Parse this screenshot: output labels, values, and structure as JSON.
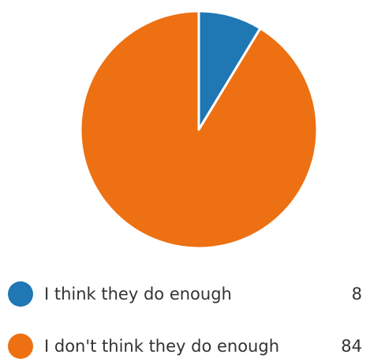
{
  "chart_data": {
    "type": "pie",
    "categories": [
      "I think they do enough",
      "I don't think they do enough"
    ],
    "values": [
      8,
      84
    ],
    "colors": [
      "#1f77b4",
      "#ed7012"
    ]
  },
  "legend": {
    "items": [
      {
        "label": "I think they do enough",
        "value": "8",
        "color": "#1f77b4"
      },
      {
        "label": "I don't think they do enough",
        "value": "84",
        "color": "#ed7012"
      }
    ]
  }
}
